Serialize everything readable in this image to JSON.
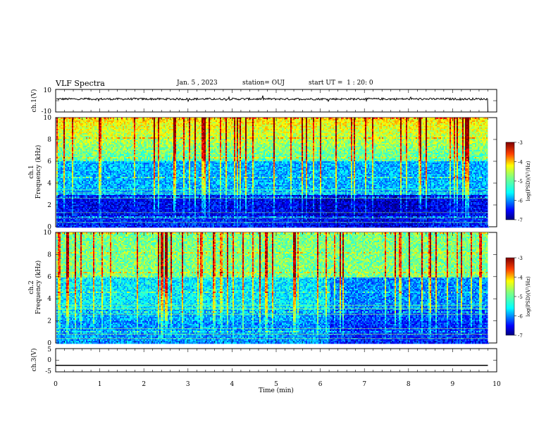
{
  "header": {
    "title": "VLF Spectra",
    "date": "Jan. 5 , 2023",
    "station": "station= OUJ",
    "start": "start UT =  1 : 20: 0"
  },
  "colors": {
    "jet": [
      "#000080",
      "#0000ff",
      "#0080ff",
      "#00ffff",
      "#80ff80",
      "#ffff00",
      "#ff8000",
      "#ff0000",
      "#800000"
    ]
  },
  "chart_data": [
    {
      "type": "line",
      "panel": "ch1-waveform",
      "ylabel": "ch.1(V)",
      "ylim": [
        -10,
        10
      ],
      "yticks": [
        10,
        -10
      ],
      "x_range_min": [
        0,
        9.8
      ],
      "level_v": 1.5,
      "note_values": "noisy trace near +1.5 V, dropping to -10 V at end"
    },
    {
      "type": "heatmap",
      "panel": "ch1-spectrogram",
      "ylabel": [
        "ch.1",
        "Frequency (kHz)"
      ],
      "ylim": [
        0,
        10
      ],
      "yticks": [
        0,
        2,
        4,
        6,
        8,
        10
      ],
      "xlim": [
        0,
        9.8
      ],
      "colorbar": {
        "label": "log(PSD)(V²/Hz)",
        "range": [
          -7,
          -3
        ],
        "ticks": [
          "-3",
          "-4",
          "-5",
          "-6",
          "-7"
        ]
      }
    },
    {
      "type": "heatmap",
      "panel": "ch2-spectrogram",
      "ylabel": [
        "ch.2",
        "Frequency (kHz)"
      ],
      "ylim": [
        0,
        10
      ],
      "yticks": [
        0,
        2,
        4,
        6,
        8,
        10
      ],
      "xlim": [
        0,
        9.8
      ],
      "colorbar": {
        "label": "log(PSD)(V²/Hz)",
        "range": [
          -7,
          -3
        ],
        "ticks": [
          "-3",
          "-4",
          "-5",
          "-6",
          "-7"
        ]
      }
    },
    {
      "type": "line",
      "panel": "ch3-waveform",
      "ylabel": "ch.3(V)",
      "ylim": [
        -5,
        5
      ],
      "yticks": [
        5,
        0,
        -5
      ],
      "level_v": -2.2
    }
  ],
  "xaxis": {
    "label": "Time (min)",
    "xlim": [
      0,
      10
    ],
    "ticks": [
      "0",
      "1",
      "2",
      "3",
      "4",
      "5",
      "6",
      "7",
      "8",
      "9",
      "10"
    ]
  }
}
